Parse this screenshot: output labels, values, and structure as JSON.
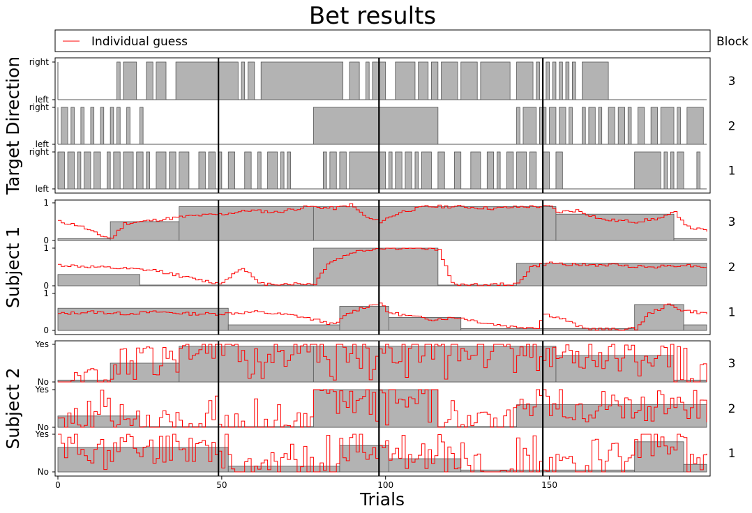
{
  "chart_data": {
    "type": "line",
    "title": "Bet results",
    "xlabel": "Trials",
    "xlim": [
      0,
      198
    ],
    "x_ticks": [
      "0",
      "50",
      "100",
      "150"
    ],
    "x_tick_values": [
      0,
      50,
      100,
      150
    ],
    "vertical_lines_at": [
      49,
      98,
      148
    ],
    "legend": {
      "label": "Individual guess",
      "color": "#ff0000",
      "placement": "top"
    },
    "block_header": "Block",
    "colors": {
      "block_fill": "#b3b3b3",
      "guess_line": "#ff0000",
      "vline": "#000000"
    },
    "panels": [
      {
        "ylabel": "Target Direction",
        "rows": [
          {
            "block": "3",
            "low_label": "left",
            "high_label": "right",
            "right_intervals": [
              [
                18,
                19
              ],
              [
                20,
                24
              ],
              [
                27,
                29
              ],
              [
                30,
                33
              ],
              [
                36,
                55
              ],
              [
                56,
                57
              ],
              [
                58,
                60
              ],
              [
                62,
                87
              ],
              [
                89,
                92
              ],
              [
                94,
                95
              ],
              [
                96,
                100
              ],
              [
                103,
                109
              ],
              [
                110,
                113
              ],
              [
                114,
                116
              ],
              [
                117,
                122
              ],
              [
                123,
                128
              ],
              [
                129,
                138
              ],
              [
                140,
                145
              ],
              [
                146,
                147
              ],
              [
                149,
                150
              ],
              [
                151,
                152
              ],
              [
                153,
                154
              ],
              [
                155,
                156
              ],
              [
                157,
                158
              ],
              [
                160,
                168
              ]
            ]
          },
          {
            "block": "2",
            "low_label": "left",
            "high_label": "right",
            "right_intervals": [
              [
                1,
                3
              ],
              [
                4,
                5
              ],
              [
                7,
                8
              ],
              [
                10,
                11
              ],
              [
                13,
                14
              ],
              [
                16,
                17
              ],
              [
                18,
                19
              ],
              [
                21,
                22
              ],
              [
                25,
                26
              ],
              [
                78,
                116
              ],
              [
                140,
                141
              ],
              [
                142,
                146
              ],
              [
                147,
                149
              ],
              [
                150,
                152
              ],
              [
                153,
                155
              ],
              [
                156,
                157
              ],
              [
                160,
                161
              ],
              [
                162,
                164
              ],
              [
                165,
                166
              ],
              [
                168,
                170
              ],
              [
                171,
                173
              ],
              [
                174,
                175
              ],
              [
                177,
                179
              ],
              [
                181,
                183
              ],
              [
                184,
                188
              ],
              [
                189,
                190
              ],
              [
                192,
                197
              ]
            ]
          },
          {
            "block": "1",
            "low_label": "left",
            "high_label": "right",
            "right_intervals": [
              [
                0,
                2
              ],
              [
                3,
                5
              ],
              [
                6,
                7
              ],
              [
                8,
                10
              ],
              [
                11,
                13
              ],
              [
                15,
                16
              ],
              [
                17,
                19
              ],
              [
                20,
                23
              ],
              [
                24,
                26
              ],
              [
                27,
                28
              ],
              [
                30,
                33
              ],
              [
                34,
                36
              ],
              [
                37,
                40
              ],
              [
                43,
                45
              ],
              [
                46,
                48
              ],
              [
                49,
                50
              ],
              [
                52,
                54
              ],
              [
                57,
                59
              ],
              [
                61,
                62
              ],
              [
                64,
                67
              ],
              [
                68,
                69
              ],
              [
                70,
                71
              ],
              [
                81,
                82
              ],
              [
                83,
                85
              ],
              [
                86,
                88
              ],
              [
                89,
                100
              ],
              [
                101,
                102
              ],
              [
                103,
                105
              ],
              [
                106,
                108
              ],
              [
                109,
                110
              ],
              [
                111,
                114
              ],
              [
                116,
                118
              ],
              [
                121,
                123
              ],
              [
                126,
                129
              ],
              [
                131,
                133
              ],
              [
                134,
                135
              ],
              [
                137,
                139
              ],
              [
                140,
                143
              ],
              [
                144,
                146
              ],
              [
                148,
                150
              ],
              [
                152,
                154
              ],
              [
                176,
                184
              ],
              [
                185,
                186
              ],
              [
                187,
                188
              ],
              [
                189,
                191
              ],
              [
                195,
                196
              ]
            ]
          }
        ]
      },
      {
        "ylabel": "Subject 1",
        "rows": [
          {
            "block": "3",
            "low_label": "0",
            "high_label": "1",
            "block_probability": [
              [
                0,
                16,
                0.05
              ],
              [
                16,
                37,
                0.5
              ],
              [
                37,
                78,
                0.9
              ],
              [
                78,
                152,
                0.9
              ],
              [
                152,
                188,
                0.7
              ],
              [
                188,
                198,
                0.05
              ]
            ],
            "guess_points": [
              [
                0,
                0.5
              ],
              [
                6,
                0.4
              ],
              [
                12,
                0.15
              ],
              [
                16,
                0.05
              ],
              [
                20,
                0.45
              ],
              [
                30,
                0.55
              ],
              [
                40,
                0.65
              ],
              [
                50,
                0.7
              ],
              [
                58,
                0.8
              ],
              [
                66,
                0.75
              ],
              [
                76,
                0.9
              ],
              [
                84,
                0.85
              ],
              [
                89,
                0.95
              ],
              [
                94,
                0.6
              ],
              [
                98,
                0.5
              ],
              [
                104,
                0.75
              ],
              [
                112,
                0.9
              ],
              [
                122,
                0.9
              ],
              [
                132,
                0.85
              ],
              [
                142,
                0.9
              ],
              [
                150,
                0.9
              ],
              [
                152,
                0.75
              ],
              [
                158,
                0.8
              ],
              [
                166,
                0.55
              ],
              [
                176,
                0.5
              ],
              [
                184,
                0.6
              ],
              [
                188,
                0.75
              ],
              [
                192,
                0.35
              ],
              [
                198,
                0.25
              ]
            ]
          },
          {
            "block": "2",
            "low_label": "0",
            "high_label": "1",
            "block_probability": [
              [
                0,
                25,
                0.3
              ],
              [
                25,
                78,
                0.02
              ],
              [
                78,
                116,
                1.0
              ],
              [
                116,
                140,
                0.02
              ],
              [
                140,
                198,
                0.6
              ]
            ],
            "guess_points": [
              [
                0,
                0.55
              ],
              [
                10,
                0.5
              ],
              [
                20,
                0.45
              ],
              [
                30,
                0.4
              ],
              [
                40,
                0.2
              ],
              [
                49,
                0.05
              ],
              [
                56,
                0.5
              ],
              [
                61,
                0.05
              ],
              [
                70,
                0.05
              ],
              [
                78,
                0.05
              ],
              [
                82,
                0.6
              ],
              [
                90,
                0.9
              ],
              [
                98,
                1.0
              ],
              [
                104,
                1.0
              ],
              [
                112,
                1.0
              ],
              [
                116,
                0.95
              ],
              [
                120,
                0.05
              ],
              [
                130,
                0.02
              ],
              [
                140,
                0.05
              ],
              [
                144,
                0.5
              ],
              [
                150,
                0.6
              ],
              [
                160,
                0.55
              ],
              [
                170,
                0.55
              ],
              [
                180,
                0.5
              ],
              [
                190,
                0.55
              ],
              [
                198,
                0.5
              ]
            ]
          },
          {
            "block": "1",
            "low_label": "0",
            "high_label": "1",
            "block_probability": [
              [
                0,
                52,
                0.6
              ],
              [
                52,
                86,
                0.15
              ],
              [
                86,
                101,
                0.65
              ],
              [
                101,
                123,
                0.35
              ],
              [
                123,
                176,
                0.05
              ],
              [
                176,
                191,
                0.7
              ],
              [
                191,
                198,
                0.15
              ]
            ],
            "guess_points": [
              [
                0,
                0.45
              ],
              [
                10,
                0.5
              ],
              [
                20,
                0.45
              ],
              [
                30,
                0.5
              ],
              [
                40,
                0.45
              ],
              [
                49,
                0.45
              ],
              [
                60,
                0.5
              ],
              [
                72,
                0.4
              ],
              [
                80,
                0.25
              ],
              [
                84,
                0.15
              ],
              [
                88,
                0.45
              ],
              [
                92,
                0.6
              ],
              [
                98,
                0.75
              ],
              [
                100,
                0.5
              ],
              [
                106,
                0.4
              ],
              [
                114,
                0.3
              ],
              [
                122,
                0.35
              ],
              [
                130,
                0.2
              ],
              [
                138,
                0.1
              ],
              [
                146,
                0.08
              ],
              [
                148,
                0.45
              ],
              [
                154,
                0.3
              ],
              [
                160,
                0.05
              ],
              [
                170,
                0.02
              ],
              [
                176,
                0.05
              ],
              [
                180,
                0.45
              ],
              [
                186,
                0.7
              ],
              [
                190,
                0.55
              ],
              [
                198,
                0.45
              ]
            ]
          }
        ]
      },
      {
        "ylabel": "Subject 2",
        "rows": [
          {
            "block": "3",
            "low_label": "No",
            "high_label": "Yes",
            "block_probability": [
              [
                0,
                16,
                0.05
              ],
              [
                16,
                37,
                0.5
              ],
              [
                37,
                78,
                0.95
              ],
              [
                78,
                152,
                0.95
              ],
              [
                152,
                188,
                0.7
              ],
              [
                188,
                198,
                0.05
              ]
            ],
            "guess_seed": 3
          },
          {
            "block": "2",
            "low_label": "No",
            "high_label": "Yes",
            "block_probability": [
              [
                0,
                25,
                0.3
              ],
              [
                25,
                78,
                0.02
              ],
              [
                78,
                116,
                1.0
              ],
              [
                116,
                140,
                0.02
              ],
              [
                140,
                198,
                0.6
              ]
            ],
            "guess_seed": 7
          },
          {
            "block": "1",
            "low_label": "No",
            "high_label": "Yes",
            "block_probability": [
              [
                0,
                52,
                0.65
              ],
              [
                52,
                86,
                0.15
              ],
              [
                86,
                101,
                0.7
              ],
              [
                101,
                123,
                0.35
              ],
              [
                123,
                176,
                0.05
              ],
              [
                176,
                191,
                0.8
              ],
              [
                191,
                198,
                0.2
              ]
            ],
            "guess_seed": 11
          }
        ]
      }
    ]
  }
}
